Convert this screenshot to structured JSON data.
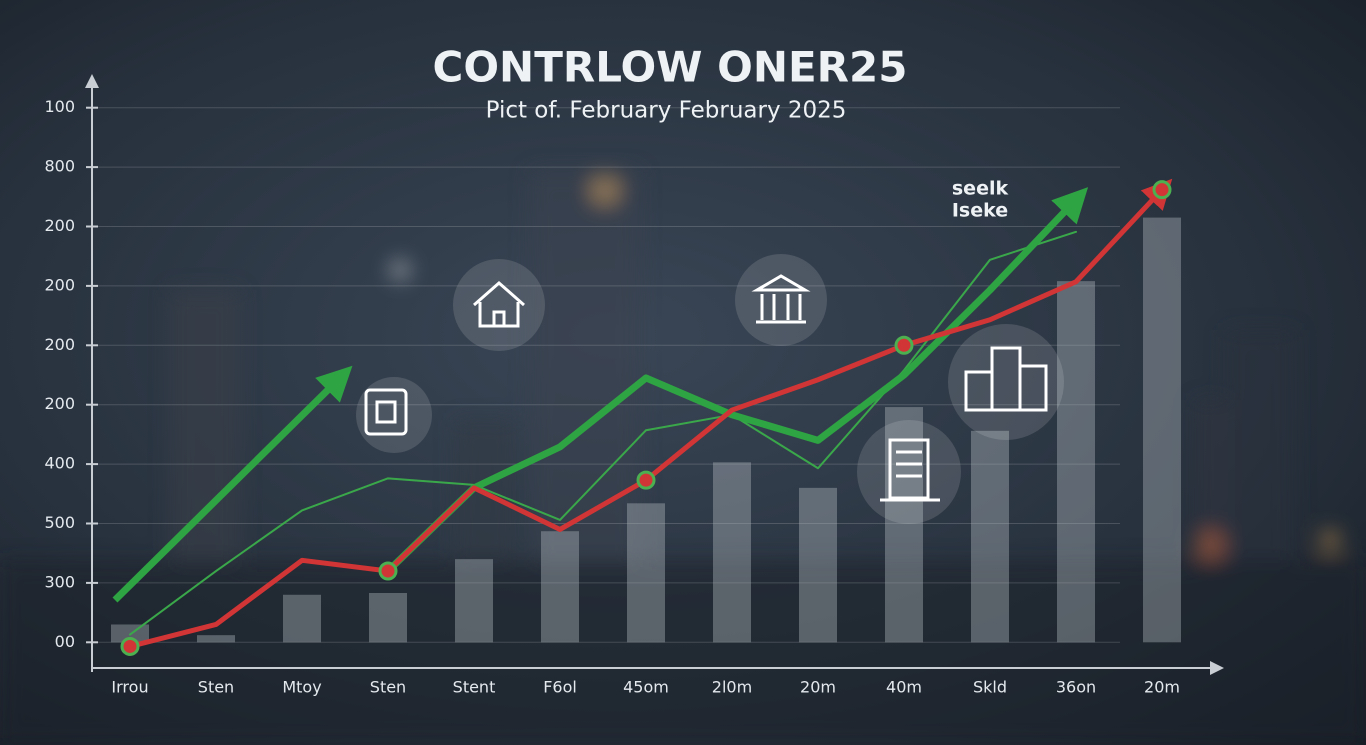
{
  "chart_data": {
    "type": "line",
    "title": "CONTRLOW ONER25",
    "subtitle": "Pict of. February February 2025",
    "annotation": [
      "seelk",
      "Iseke"
    ],
    "categories": [
      "Irrou",
      "Sten",
      "Mtoy",
      "Sten",
      "Stent",
      "F6ol",
      "45om",
      "2l0m",
      "20m",
      "40m",
      "Skld",
      "36on",
      "20m"
    ],
    "ylim": [
      -0.5,
      9.5
    ],
    "yticks": [
      {
        "value": 9,
        "label": "100"
      },
      {
        "value": 8,
        "label": "800"
      },
      {
        "value": 7,
        "label": "200"
      },
      {
        "value": 6,
        "label": "200"
      },
      {
        "value": 5,
        "label": "200"
      },
      {
        "value": 4,
        "label": "200"
      },
      {
        "value": 3,
        "label": "400"
      },
      {
        "value": 2,
        "label": "500"
      },
      {
        "value": 1,
        "label": "300"
      },
      {
        "value": 0,
        "label": "00"
      }
    ],
    "grid": true,
    "series": [
      {
        "type": "bar",
        "color": "#b9bfc6",
        "values": [
          0.3,
          0.12,
          0.8,
          0.83,
          1.4,
          1.87,
          2.34,
          3.03,
          2.6,
          3.96,
          3.56,
          6.08,
          7.15
        ]
      },
      {
        "type": "line",
        "color": "#3aa84a",
        "width": 2,
        "values": [
          0.13,
          1.2,
          2.22,
          2.76,
          2.65,
          2.06,
          3.57,
          3.83,
          2.93,
          4.58,
          6.44,
          6.91,
          null
        ]
      },
      {
        "type": "line",
        "color": "#2fa443",
        "width": 7,
        "arrow": true,
        "values": [
          null,
          null,
          null,
          1.2,
          2.6,
          3.29,
          4.45,
          3.83,
          3.4,
          4.5,
          5.93,
          7.45,
          null
        ]
      },
      {
        "type": "line",
        "color": "#d23535",
        "width": 5,
        "arrow": true,
        "markers": true,
        "values": [
          -0.07,
          0.3,
          1.38,
          1.2,
          2.6,
          1.9,
          2.73,
          3.91,
          4.42,
          5.0,
          5.43,
          6.07,
          7.62
        ]
      }
    ]
  }
}
